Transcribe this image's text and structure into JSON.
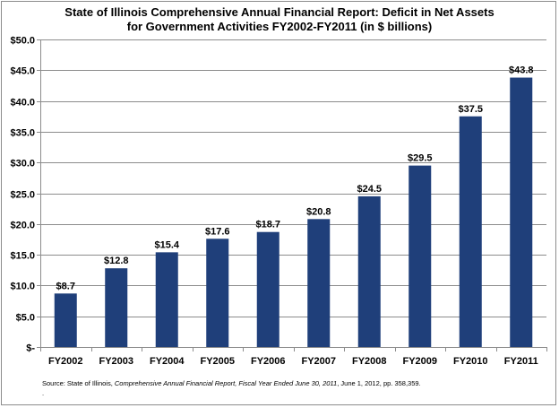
{
  "chart_data": {
    "type": "bar",
    "title_line1": "State of Illinois Comprehensive Annual Financial Report: Deficit in Net Assets",
    "title_line2": "for Government Activities FY2002-FY2011 (in $ billions)",
    "categories": [
      "FY2002",
      "FY2003",
      "FY2004",
      "FY2005",
      "FY2006",
      "FY2007",
      "FY2008",
      "FY2009",
      "FY2010",
      "FY2011"
    ],
    "values": [
      8.7,
      12.8,
      15.4,
      17.6,
      18.7,
      20.8,
      24.5,
      29.5,
      37.5,
      43.8
    ],
    "data_labels": [
      "$8.7",
      "$12.8",
      "$15.4",
      "$17.6",
      "$18.7",
      "$20.8",
      "$24.5",
      "$29.5",
      "$37.5",
      "$43.8"
    ],
    "y_ticks": [
      0,
      5,
      10,
      15,
      20,
      25,
      30,
      35,
      40,
      45,
      50
    ],
    "y_tick_labels": [
      "$-",
      "$5.0",
      "$10.0",
      "$15.0",
      "$20.0",
      "$25.0",
      "$30.0",
      "$35.0",
      "$40.0",
      "$45.0",
      "$50.0"
    ],
    "ylim": [
      0,
      50
    ],
    "xlabel": "",
    "ylabel": "",
    "grid": true,
    "legend": "none",
    "bar_color": "#1f3f7a"
  },
  "source": {
    "prefix": "Source: State of Illinois, ",
    "title_italic": "Comprehensive Annual Financial Report, Fiscal Year Ended June 30, 2011",
    "suffix": ", June 1, 2012, pp. 358,359.",
    "trailing": "."
  }
}
